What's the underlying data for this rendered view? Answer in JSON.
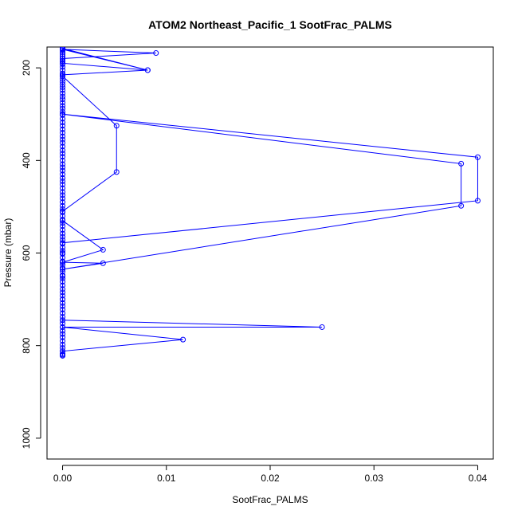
{
  "chart_data": {
    "type": "line",
    "title": "ATOM2 Northeast_Pacific_1 SootFrac_PALMS",
    "xlabel": "SootFrac_PALMS",
    "ylabel": "Pressure (mbar)",
    "xlim": [
      -0.0015,
      0.0415
    ],
    "ylim": [
      1045,
      155
    ],
    "y_reversed": true,
    "x_ticks": [
      "0.00",
      "0.01",
      "0.02",
      "0.03",
      "0.04"
    ],
    "y_ticks": [
      "200",
      "400",
      "600",
      "800",
      "1000"
    ],
    "grid": false,
    "series_color": "#0000ff",
    "points": [
      [
        0,
        158
      ],
      [
        0.0082,
        205
      ],
      [
        0,
        160
      ],
      [
        0.009,
        168
      ],
      [
        0,
        180
      ],
      [
        0,
        185
      ],
      [
        0,
        190
      ],
      [
        0.0082,
        205
      ],
      [
        0,
        215
      ],
      [
        0,
        218
      ],
      [
        0.0052,
        325
      ],
      [
        0.0052,
        425
      ],
      [
        0,
        510
      ],
      [
        0,
        530
      ],
      [
        0.0039,
        593
      ],
      [
        0,
        620
      ],
      [
        0.0039,
        622
      ],
      [
        0,
        635
      ],
      [
        0.0384,
        498
      ],
      [
        0.0384,
        407
      ],
      [
        0,
        300
      ],
      [
        0.04,
        393
      ],
      [
        0.04,
        487
      ],
      [
        0,
        578
      ],
      [
        0,
        600
      ],
      [
        0,
        650
      ],
      [
        0,
        700
      ],
      [
        0,
        745
      ],
      [
        0.025,
        760
      ],
      [
        0,
        760
      ],
      [
        0.0116,
        787
      ],
      [
        0,
        812
      ],
      [
        0,
        820
      ]
    ],
    "column_points_at_zero": [
      158,
      162,
      166,
      170,
      175,
      180,
      186,
      192,
      198,
      205,
      212,
      218,
      224,
      230,
      236,
      242,
      248,
      255,
      262,
      268,
      275,
      282,
      288,
      295,
      302,
      310,
      318,
      325,
      333,
      340,
      348,
      355,
      362,
      370,
      378,
      385,
      392,
      400,
      408,
      415,
      422,
      430,
      438,
      445,
      452,
      460,
      468,
      475,
      482,
      490,
      498,
      505,
      512,
      520,
      528,
      535,
      542,
      550,
      558,
      565,
      572,
      580,
      588,
      595,
      602,
      610,
      618,
      625,
      632,
      640,
      648,
      655,
      662,
      670,
      678,
      685,
      692,
      700,
      708,
      715,
      722,
      730,
      738,
      745,
      752,
      760,
      768,
      775,
      782,
      790,
      798,
      805,
      812,
      818,
      822
    ]
  }
}
